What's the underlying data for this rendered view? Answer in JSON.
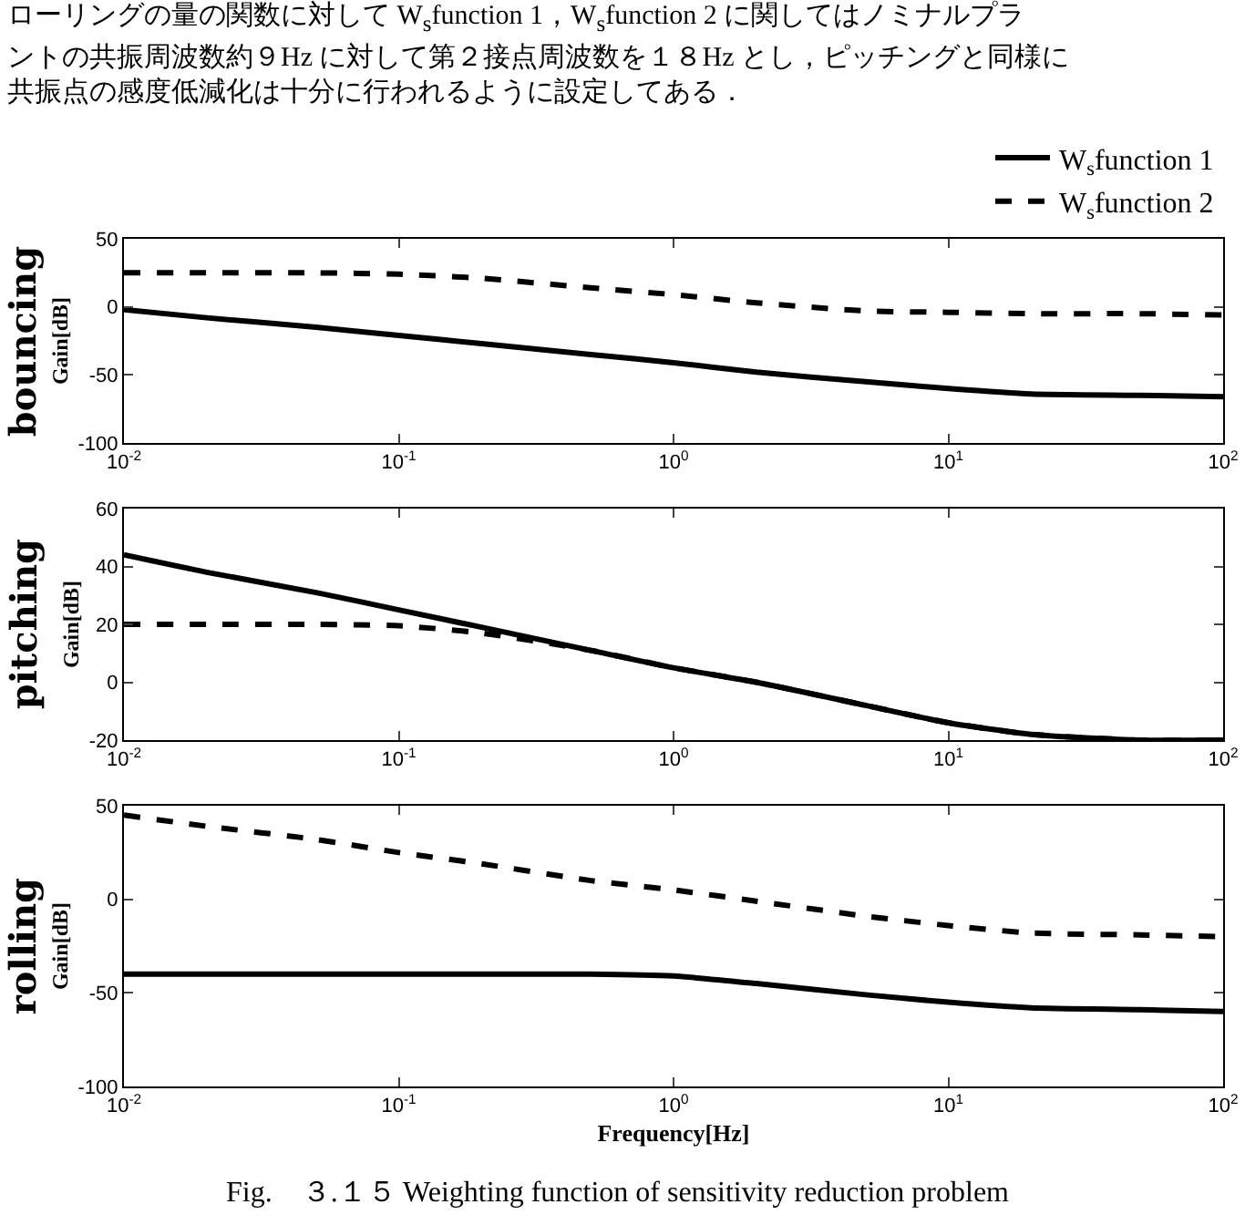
{
  "chart_data": [
    {
      "type": "line",
      "title": "bouncing",
      "ylabel": "Gain[dB]",
      "log": "x",
      "legend": "top right",
      "grid": false,
      "annotations": [
        "ローリングの量の関数に対して W$_{s}$function 1，W$_{s}$function 2 に関してはノミナルプラ",
        "ントの共振周波数約９Hz に対して第２接点周波数を１８Hz とし，ピッチングと同様に",
        "共振点の感度低減化は十分に行われるように設定してある．"
      ],
      "x": [
        0.01,
        0.02,
        0.05,
        0.1,
        0.2,
        0.5,
        1,
        2,
        5,
        10,
        20,
        50,
        100
      ],
      "xlim": [
        0.01,
        100
      ],
      "xticks": [
        {
          "value": 0.01,
          "label": "10$^{-2}$"
        },
        {
          "value": 0.1,
          "label": "10$^{-1}$"
        },
        {
          "value": 1,
          "label": "10$^{0}$"
        },
        {
          "value": 10,
          "label": "10$^{1}$"
        },
        {
          "value": 100,
          "label": "10$^{2}$"
        }
      ],
      "ylim": [
        -100,
        50
      ],
      "yticks": [
        -100,
        -50,
        0,
        50
      ],
      "series": [
        {
          "name": "W$_{s}$function 1",
          "color": "#000000",
          "line_style": "solid",
          "values": [
            -2,
            -8,
            -15,
            -21,
            -27,
            -35,
            -41,
            -48,
            -55,
            -60,
            -64,
            -65,
            -66
          ]
        },
        {
          "name": "W$_{s}$function 2",
          "color": "#000000",
          "line_style": "dashed",
          "values": [
            25,
            25,
            25,
            24,
            21,
            14,
            9,
            3,
            -3,
            -4,
            -5,
            -5,
            -6
          ]
        }
      ]
    },
    {
      "type": "line",
      "title": "pitching",
      "ylabel": "Gain[dB]",
      "log": "x",
      "grid": false,
      "x": [
        0.01,
        0.02,
        0.05,
        0.1,
        0.2,
        0.5,
        1,
        2,
        5,
        10,
        20,
        50,
        100
      ],
      "xlim": [
        0.01,
        100
      ],
      "xticks": [
        {
          "value": 0.01,
          "label": "10$^{-2}$"
        },
        {
          "value": 0.1,
          "label": "10$^{-1}$"
        },
        {
          "value": 1,
          "label": "10$^{0}$"
        },
        {
          "value": 10,
          "label": "10$^{1}$"
        },
        {
          "value": 100,
          "label": "10$^{2}$"
        }
      ],
      "ylim": [
        -20,
        60
      ],
      "yticks": [
        -20,
        0,
        20,
        40,
        60
      ],
      "series": [
        {
          "color": "#000000",
          "line_style": "solid",
          "values": [
            44,
            38,
            31,
            25,
            19,
            11,
            5,
            0,
            -8,
            -14,
            -18,
            -20,
            -20
          ]
        },
        {
          "color": "#000000",
          "line_style": "dashed",
          "values": [
            20,
            20,
            20,
            19.5,
            17,
            11,
            5,
            0,
            -8,
            -14,
            -18,
            -20,
            -20
          ]
        }
      ]
    },
    {
      "type": "line",
      "title": "rolling",
      "ylabel": "Gain[dB]",
      "xlabel": "Frequency[Hz]",
      "log": "x",
      "grid": false,
      "annotations": [
        "Fig.　３.１５ Weighting function of sensitivity reduction problem"
      ],
      "x": [
        0.01,
        0.02,
        0.05,
        0.1,
        0.2,
        0.5,
        1,
        2,
        5,
        10,
        20,
        50,
        100
      ],
      "xlim": [
        0.01,
        100
      ],
      "xticks": [
        {
          "value": 0.01,
          "label": "10$^{-2}$"
        },
        {
          "value": 0.1,
          "label": "10$^{-1}$"
        },
        {
          "value": 1,
          "label": "10$^{0}$"
        },
        {
          "value": 10,
          "label": "10$^{1}$"
        },
        {
          "value": 100,
          "label": "10$^{2}$"
        }
      ],
      "ylim": [
        -100,
        50
      ],
      "yticks": [
        -100,
        -50,
        0,
        50
      ],
      "series": [
        {
          "color": "#000000",
          "line_style": "solid",
          "values": [
            -40,
            -40,
            -40,
            -40,
            -40,
            -40,
            -41,
            -45,
            -51,
            -55,
            -58,
            -59,
            -60
          ]
        },
        {
          "color": "#000000",
          "line_style": "dashed",
          "values": [
            45,
            39,
            32,
            25,
            19,
            10,
            5,
            -1,
            -9,
            -14,
            -18,
            -19,
            -20
          ]
        }
      ]
    }
  ]
}
